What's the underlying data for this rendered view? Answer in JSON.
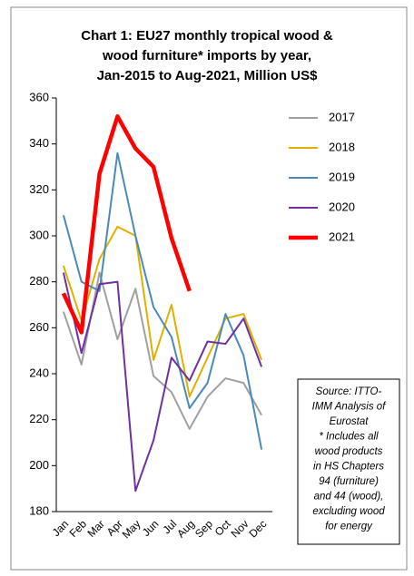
{
  "chart_data": {
    "type": "line",
    "title": [
      "Chart 1: EU27 monthly tropical wood &",
      "wood furniture* imports by year,",
      "Jan-2015 to Aug-2021, Million US$"
    ],
    "categories": [
      "Jan",
      "Feb",
      "Mar",
      "Apr",
      "May",
      "Jun",
      "Jul",
      "Aug",
      "Sep",
      "Oct",
      "Nov",
      "Dec"
    ],
    "series": [
      {
        "name": "2017",
        "color": "#a0a0a0",
        "values": [
          267,
          244,
          284,
          255,
          277,
          239,
          232,
          216,
          230,
          238,
          236,
          222
        ]
      },
      {
        "name": "2018",
        "color": "#e0b000",
        "values": [
          287,
          263,
          290,
          304,
          300,
          246,
          270,
          230,
          247,
          264,
          266,
          246
        ]
      },
      {
        "name": "2019",
        "color": "#4a8ab8",
        "values": [
          309,
          280,
          276,
          336,
          300,
          269,
          256,
          225,
          236,
          266,
          248,
          207
        ]
      },
      {
        "name": "2020",
        "color": "#7030a0",
        "values": [
          284,
          249,
          279,
          280,
          189,
          211,
          247,
          237,
          254,
          253,
          264,
          243
        ]
      },
      {
        "name": "2021",
        "color": "#ff0000",
        "values": [
          275,
          258,
          327,
          352,
          338,
          330,
          299,
          276,
          null,
          null,
          null,
          null
        ]
      }
    ],
    "ylim": [
      180,
      360
    ],
    "yticks": [
      180,
      200,
      220,
      240,
      260,
      280,
      300,
      320,
      340,
      360
    ],
    "source_lines": [
      "Source: ITTO-",
      "IMM Analysis of",
      "Eurostat",
      "* Includes all",
      "wood products",
      "in HS Chapters",
      "94 (furniture)",
      "and 44 (wood),",
      "excluding wood",
      "for energy"
    ]
  }
}
